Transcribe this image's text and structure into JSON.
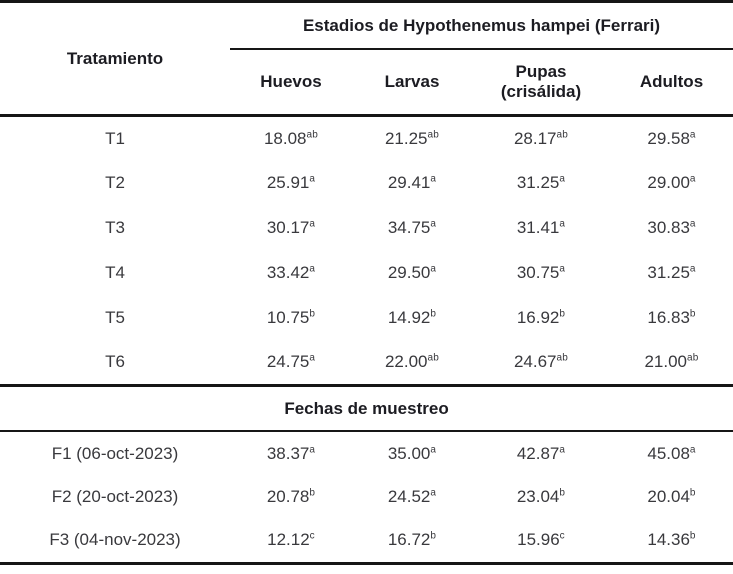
{
  "colors": {
    "header_text": "#1c1c22",
    "data_text": "#39393d",
    "border": "#161616",
    "background": "#ffffff"
  },
  "table": {
    "row_header": "Tratamiento",
    "col_group_header": "Estadios de Hypothenemus hampei (Ferrari)",
    "columns": [
      {
        "label": "Huevos",
        "sublabel": ""
      },
      {
        "label": "Larvas",
        "sublabel": ""
      },
      {
        "label": "Pupas",
        "sublabel": "(crisálida)"
      },
      {
        "label": "Adultos",
        "sublabel": ""
      }
    ],
    "treatments": [
      {
        "label": "T1",
        "cells": [
          {
            "v": "18.08",
            "s": "ab"
          },
          {
            "v": "21.25",
            "s": "ab"
          },
          {
            "v": "28.17",
            "s": "ab"
          },
          {
            "v": "29.58",
            "s": "a"
          }
        ]
      },
      {
        "label": "T2",
        "cells": [
          {
            "v": "25.91",
            "s": "a"
          },
          {
            "v": "29.41",
            "s": "a"
          },
          {
            "v": "31.25",
            "s": "a"
          },
          {
            "v": "29.00",
            "s": "a"
          }
        ]
      },
      {
        "label": "T3",
        "cells": [
          {
            "v": "30.17",
            "s": "a"
          },
          {
            "v": "34.75",
            "s": "a"
          },
          {
            "v": "31.41",
            "s": "a"
          },
          {
            "v": "30.83",
            "s": "a"
          }
        ]
      },
      {
        "label": "T4",
        "cells": [
          {
            "v": "33.42",
            "s": "a"
          },
          {
            "v": "29.50",
            "s": "a"
          },
          {
            "v": "30.75",
            "s": "a"
          },
          {
            "v": "31.25",
            "s": "a"
          }
        ]
      },
      {
        "label": "T5",
        "cells": [
          {
            "v": "10.75",
            "s": "b"
          },
          {
            "v": "14.92",
            "s": "b"
          },
          {
            "v": "16.92",
            "s": "b"
          },
          {
            "v": "16.83",
            "s": "b"
          }
        ]
      },
      {
        "label": "T6",
        "cells": [
          {
            "v": "24.75",
            "s": "a"
          },
          {
            "v": "22.00",
            "s": "ab"
          },
          {
            "v": "24.67",
            "s": "ab"
          },
          {
            "v": "21.00",
            "s": "ab"
          }
        ]
      }
    ],
    "section_header": "Fechas de muestreo",
    "dates": [
      {
        "label": "F1 (06-oct-2023)",
        "cells": [
          {
            "v": "38.37",
            "s": "a"
          },
          {
            "v": "35.00",
            "s": "a"
          },
          {
            "v": "42.87",
            "s": "a"
          },
          {
            "v": "45.08",
            "s": "a"
          }
        ]
      },
      {
        "label": "F2 (20-oct-2023)",
        "cells": [
          {
            "v": "20.78",
            "s": "b"
          },
          {
            "v": "24.52",
            "s": "a"
          },
          {
            "v": "23.04",
            "s": "b"
          },
          {
            "v": "20.04",
            "s": "b"
          }
        ]
      },
      {
        "label": "F3 (04-nov-2023)",
        "cells": [
          {
            "v": "12.12",
            "s": "c"
          },
          {
            "v": "16.72",
            "s": "b"
          },
          {
            "v": "15.96",
            "s": "c"
          },
          {
            "v": "14.36",
            "s": "b"
          }
        ]
      }
    ]
  }
}
